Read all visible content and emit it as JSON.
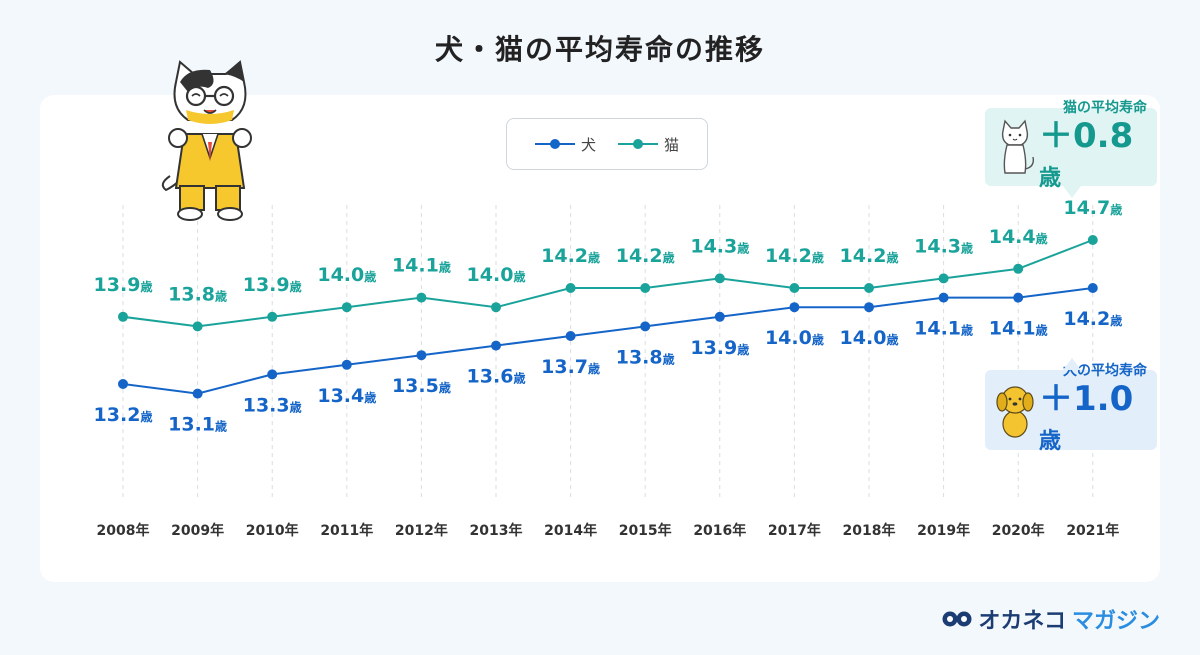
{
  "title": "犬・猫の平均寿命の推移",
  "legend": {
    "dog_label": "犬",
    "cat_label": "猫"
  },
  "colors": {
    "dog": "#1565c8",
    "cat": "#1aa39a",
    "grid": "#d9dee3"
  },
  "callouts": {
    "cat": {
      "head": "猫の平均寿命",
      "sign": "＋",
      "value": "0.8",
      "unit": "歳",
      "icon": "cat-icon"
    },
    "dog": {
      "head": "犬の平均寿命",
      "sign": "＋",
      "value": "1.0",
      "unit": "歳",
      "icon": "dog-icon"
    }
  },
  "brand": {
    "name_a": "オカネコ",
    "name_b": "マガジン",
    "icon": "brand-logo-icon"
  },
  "chart_data": {
    "type": "line",
    "title": "犬・猫の平均寿命の推移",
    "x": [
      "2008年",
      "2009年",
      "2010年",
      "2011年",
      "2012年",
      "2013年",
      "2014年",
      "2015年",
      "2016年",
      "2017年",
      "2018年",
      "2019年",
      "2020年",
      "2021年"
    ],
    "value_unit": "歳",
    "series": [
      {
        "name": "猫",
        "values": [
          13.9,
          13.8,
          13.9,
          14.0,
          14.1,
          14.0,
          14.2,
          14.2,
          14.3,
          14.2,
          14.2,
          14.3,
          14.4,
          14.7
        ]
      },
      {
        "name": "犬",
        "values": [
          13.2,
          13.1,
          13.3,
          13.4,
          13.5,
          13.6,
          13.7,
          13.8,
          13.9,
          14.0,
          14.0,
          14.1,
          14.1,
          14.2
        ]
      }
    ],
    "grid": "vertical-dashed",
    "legend_position": "top"
  }
}
